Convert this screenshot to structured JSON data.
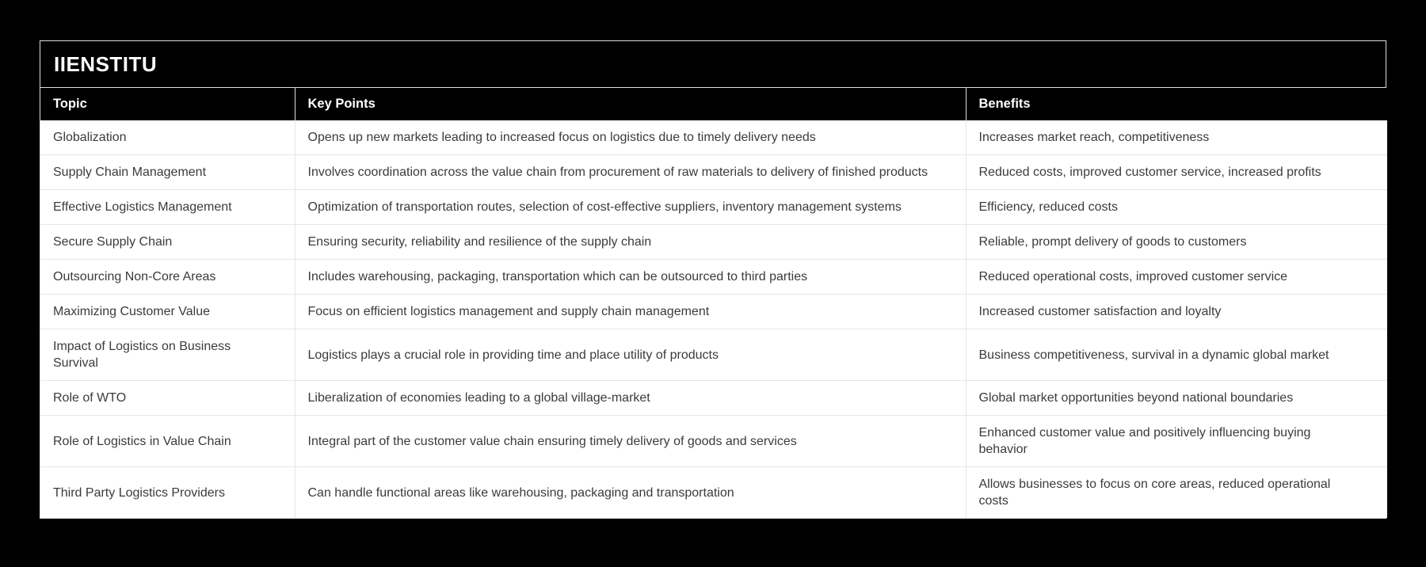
{
  "page": {
    "background_color": "#000000",
    "card_background": "#ffffff",
    "header_background": "#000000",
    "header_text_color": "#ffffff",
    "body_text_color": "#3b3b3b",
    "divider_color": "#e6e6e6"
  },
  "brand": {
    "title": "IIENSTITU"
  },
  "table": {
    "columns": [
      {
        "key": "topic",
        "label": "Topic"
      },
      {
        "key": "key_points",
        "label": "Key Points"
      },
      {
        "key": "benefits",
        "label": "Benefits"
      }
    ],
    "rows": [
      {
        "topic": "Globalization",
        "key_points": "Opens up new markets leading to increased focus on logistics due to timely delivery needs",
        "benefits": "Increases market reach, competitiveness"
      },
      {
        "topic": "Supply Chain Management",
        "key_points": "Involves coordination across the value chain from procurement of raw materials to delivery of finished products",
        "benefits": "Reduced costs, improved customer service, increased profits"
      },
      {
        "topic": "Effective Logistics Management",
        "key_points": "Optimization of transportation routes, selection of cost-effective suppliers, inventory management systems",
        "benefits": "Efficiency, reduced costs"
      },
      {
        "topic": "Secure Supply Chain",
        "key_points": "Ensuring security, reliability and resilience of the supply chain",
        "benefits": "Reliable, prompt delivery of goods to customers"
      },
      {
        "topic": "Outsourcing Non-Core Areas",
        "key_points": "Includes warehousing, packaging, transportation which can be outsourced to third parties",
        "benefits": "Reduced operational costs, improved customer service"
      },
      {
        "topic": "Maximizing Customer Value",
        "key_points": "Focus on efficient logistics management and supply chain management",
        "benefits": "Increased customer satisfaction and loyalty"
      },
      {
        "topic": "Impact of Logistics on Business Survival",
        "key_points": "Logistics plays a crucial role in providing time and place utility of products",
        "benefits": "Business competitiveness, survival in a dynamic global market"
      },
      {
        "topic": "Role of WTO",
        "key_points": "Liberalization of economies leading to a global village-market",
        "benefits": "Global market opportunities beyond national boundaries"
      },
      {
        "topic": "Role of Logistics in Value Chain",
        "key_points": "Integral part of the customer value chain ensuring timely delivery of goods and services",
        "benefits": "Enhanced customer value and positively influencing buying behavior"
      },
      {
        "topic": "Third Party Logistics Providers",
        "key_points": "Can handle functional areas like warehousing, packaging and transportation",
        "benefits": "Allows businesses to focus on core areas, reduced operational costs"
      }
    ]
  }
}
